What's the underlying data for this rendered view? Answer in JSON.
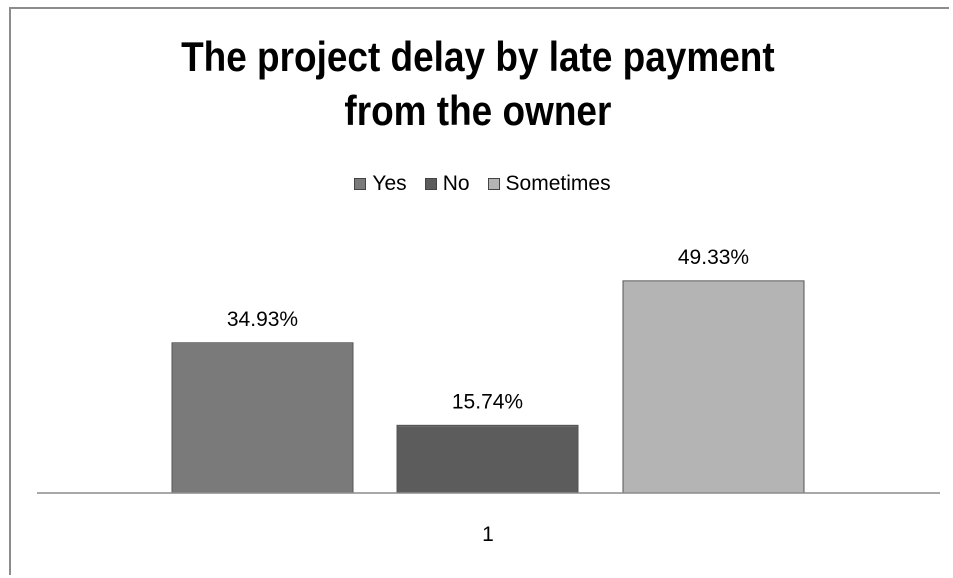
{
  "chart_data": {
    "type": "bar",
    "title": "The project delay by late payment from the owner",
    "title_lines": [
      "The project delay by late payment",
      "from the owner"
    ],
    "categories": [
      "1"
    ],
    "series": [
      {
        "name": "Yes",
        "values": [
          34.93
        ],
        "label": "34.93%",
        "color": "#7a7a7a"
      },
      {
        "name": "No",
        "values": [
          15.74
        ],
        "label": "15.74%",
        "color": "#5c5c5c"
      },
      {
        "name": "Sometimes",
        "values": [
          49.33
        ],
        "label": "49.33%",
        "color": "#b4b4b4"
      }
    ],
    "unit": "%",
    "ylim": [
      0,
      70
    ],
    "grid": false,
    "legend_position": "top"
  }
}
